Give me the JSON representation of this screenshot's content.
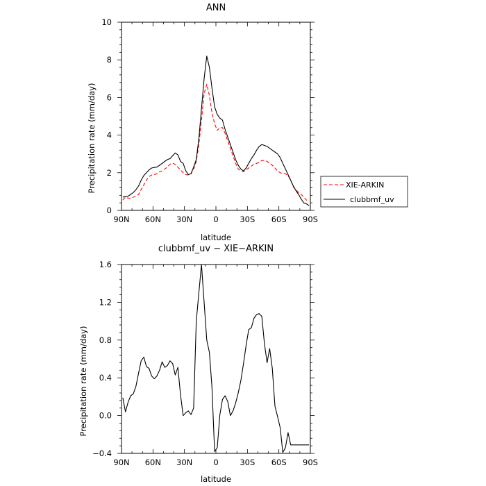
{
  "chart_data": [
    {
      "type": "line",
      "title": "ANN",
      "xlabel": "latitude",
      "ylabel": "Precipitation rate (mm/day)",
      "xlim": [
        90,
        -90
      ],
      "ylim": [
        0,
        10
      ],
      "xticks": [
        90,
        60,
        30,
        0,
        -30,
        -60,
        -90
      ],
      "xtick_labels": [
        "90N",
        "60N",
        "30N",
        "0",
        "30S",
        "60S",
        "90S"
      ],
      "yticks": [
        0,
        2,
        4,
        6,
        8,
        10
      ],
      "ytick_labels": [
        "0",
        "2",
        "4",
        "6",
        "8",
        "10"
      ],
      "grid": false,
      "legend_position": "right",
      "series": [
        {
          "name": "XIE-ARKIN",
          "color": "#ff0000",
          "dash": "dashed",
          "x": [
            88.75,
            86.25,
            83.75,
            81.25,
            78.75,
            76.25,
            73.75,
            71.25,
            68.75,
            66.25,
            63.75,
            61.25,
            58.75,
            56.25,
            53.75,
            51.25,
            48.75,
            46.25,
            43.75,
            41.25,
            38.75,
            36.25,
            33.75,
            31.25,
            28.75,
            26.25,
            23.75,
            21.25,
            18.75,
            16.25,
            13.75,
            11.25,
            8.75,
            6.25,
            3.75,
            1.25,
            -1.25,
            -3.75,
            -6.25,
            -8.75,
            -11.25,
            -13.75,
            -16.25,
            -18.75,
            -21.25,
            -23.75,
            -26.25,
            -28.75,
            -31.25,
            -33.75,
            -36.25,
            -38.75,
            -41.25,
            -43.75,
            -46.25,
            -48.75,
            -51.25,
            -53.75,
            -56.25,
            -58.75,
            -61.25,
            -63.75,
            -66.25,
            -68.75,
            -71.25,
            -73.75,
            -76.25,
            -78.75,
            -81.25,
            -83.75,
            -86.25,
            -88.75
          ],
          "values": [
            0.55,
            0.7,
            0.65,
            0.65,
            0.7,
            0.75,
            0.85,
            1.1,
            1.35,
            1.6,
            1.8,
            1.88,
            1.9,
            1.95,
            2.05,
            2.1,
            2.2,
            2.3,
            2.45,
            2.5,
            2.45,
            2.3,
            2.15,
            2.0,
            1.9,
            1.88,
            1.95,
            2.2,
            2.6,
            3.5,
            4.8,
            6.2,
            6.7,
            6.1,
            5.2,
            4.6,
            4.25,
            4.4,
            4.4,
            4.1,
            3.7,
            3.3,
            2.9,
            2.5,
            2.2,
            2.1,
            2.05,
            2.15,
            2.25,
            2.35,
            2.45,
            2.5,
            2.55,
            2.65,
            2.65,
            2.6,
            2.5,
            2.4,
            2.25,
            2.1,
            2.0,
            1.95,
            1.95,
            1.85,
            1.6,
            1.25,
            1.1,
            0.95,
            0.85,
            0.7,
            0.55,
            0.5
          ]
        },
        {
          "name": "clubbmf_uv",
          "color": "#000000",
          "dash": "solid",
          "x": [
            88.75,
            86.25,
            83.75,
            81.25,
            78.75,
            76.25,
            73.75,
            71.25,
            68.75,
            66.25,
            63.75,
            61.25,
            58.75,
            56.25,
            53.75,
            51.25,
            48.75,
            46.25,
            43.75,
            41.25,
            38.75,
            36.25,
            33.75,
            31.25,
            28.75,
            26.25,
            23.75,
            21.25,
            18.75,
            16.25,
            13.75,
            11.25,
            8.75,
            6.25,
            3.75,
            1.25,
            -1.25,
            -3.75,
            -6.25,
            -8.75,
            -11.25,
            -13.75,
            -16.25,
            -18.75,
            -21.25,
            -23.75,
            -26.25,
            -28.75,
            -31.25,
            -33.75,
            -36.25,
            -38.75,
            -41.25,
            -43.75,
            -46.25,
            -48.75,
            -51.25,
            -53.75,
            -56.25,
            -58.75,
            -61.25,
            -63.75,
            -66.25,
            -68.75,
            -71.25,
            -73.75,
            -76.25,
            -78.75,
            -81.25,
            -83.75,
            -86.25,
            -88.75
          ],
          "values": [
            0.7,
            0.75,
            0.75,
            0.85,
            0.95,
            1.1,
            1.3,
            1.6,
            1.85,
            2.0,
            2.15,
            2.25,
            2.28,
            2.3,
            2.4,
            2.5,
            2.6,
            2.7,
            2.75,
            2.9,
            3.05,
            2.95,
            2.6,
            2.5,
            2.1,
            1.9,
            1.95,
            2.3,
            2.7,
            3.8,
            5.4,
            7.0,
            8.2,
            7.6,
            6.5,
            5.5,
            5.1,
            4.9,
            4.8,
            4.3,
            3.9,
            3.5,
            3.1,
            2.7,
            2.4,
            2.2,
            2.1,
            2.25,
            2.5,
            2.75,
            2.95,
            3.2,
            3.4,
            3.5,
            3.45,
            3.4,
            3.3,
            3.2,
            3.1,
            3.0,
            2.8,
            2.5,
            2.2,
            1.9,
            1.6,
            1.3,
            1.05,
            0.85,
            0.6,
            0.4,
            0.35,
            0.25
          ]
        }
      ]
    },
    {
      "type": "line",
      "title": "clubbmf_uv − XIE−ARKIN",
      "xlabel": "latitude",
      "ylabel": "Precipitation rate (mm/day)",
      "xlim": [
        90,
        -90
      ],
      "ylim": [
        -0.4,
        1.6
      ],
      "xticks": [
        90,
        60,
        30,
        0,
        -30,
        -60,
        -90
      ],
      "xtick_labels": [
        "90N",
        "60N",
        "30N",
        "0",
        "30S",
        "60S",
        "90S"
      ],
      "yticks": [
        -0.4,
        0.0,
        0.4,
        0.8,
        1.2,
        1.6
      ],
      "ytick_labels": [
        "−0.4",
        "0.0",
        "0.4",
        "0.8",
        "1.2",
        "1.6"
      ],
      "grid": false,
      "series": [
        {
          "color": "#000000",
          "dash": "solid",
          "x": [
            88.75,
            86.25,
            83.75,
            81.25,
            78.75,
            76.25,
            73.75,
            71.25,
            68.75,
            66.25,
            63.75,
            61.25,
            58.75,
            56.25,
            53.75,
            51.25,
            48.75,
            46.25,
            43.75,
            41.25,
            38.75,
            36.25,
            33.75,
            31.25,
            28.75,
            26.25,
            23.75,
            21.25,
            18.75,
            16.25,
            13.75,
            11.25,
            8.75,
            6.25,
            3.75,
            1.25,
            -1.25,
            -3.75,
            -6.25,
            -8.75,
            -11.25,
            -13.75,
            -16.25,
            -18.75,
            -21.25,
            -23.75,
            -26.25,
            -28.75,
            -31.25,
            -33.75,
            -36.25,
            -38.75,
            -41.25,
            -43.75,
            -46.25,
            -48.75,
            -51.25,
            -53.75,
            -56.25,
            -58.75,
            -61.25,
            -63.75,
            -66.25,
            -68.75,
            -71.25,
            -73.75,
            -76.25,
            -78.75,
            -81.25,
            -83.75,
            -86.25,
            -88.75
          ],
          "values": [
            0.19,
            0.04,
            0.14,
            0.21,
            0.23,
            0.31,
            0.45,
            0.58,
            0.62,
            0.52,
            0.5,
            0.42,
            0.39,
            0.42,
            0.48,
            0.57,
            0.51,
            0.53,
            0.58,
            0.55,
            0.43,
            0.51,
            0.22,
            0.0,
            0.03,
            0.05,
            0.01,
            0.08,
            1.0,
            1.3,
            1.6,
            1.2,
            0.8,
            0.67,
            0.3,
            -0.38,
            -0.34,
            0.01,
            0.17,
            0.21,
            0.15,
            0.0,
            0.05,
            0.13,
            0.24,
            0.37,
            0.55,
            0.74,
            0.91,
            0.93,
            1.03,
            1.07,
            1.08,
            1.05,
            0.76,
            0.56,
            0.71,
            0.5,
            0.1,
            -0.01,
            -0.13,
            -0.39,
            -0.34,
            -0.18,
            -0.31,
            -0.31,
            -0.31,
            -0.31,
            -0.31,
            -0.31,
            -0.31,
            -0.31
          ]
        }
      ]
    }
  ]
}
